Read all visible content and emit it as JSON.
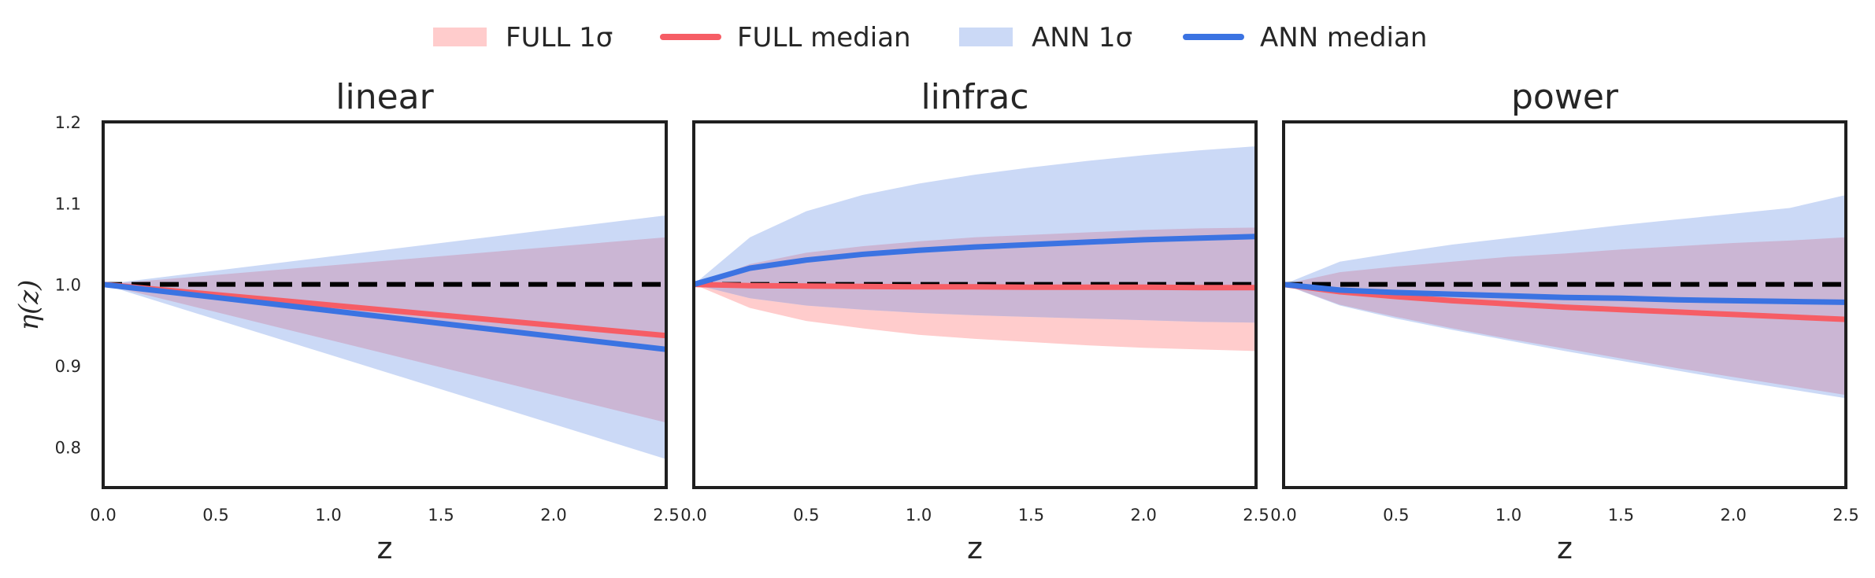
{
  "figure": {
    "legend": [
      {
        "kind": "band",
        "label": "FULL 1σ",
        "color": "#ffcccc"
      },
      {
        "kind": "line",
        "label": "FULL median",
        "color": "#f65d65"
      },
      {
        "kind": "band",
        "label": "ANN 1σ",
        "color": "#cbd9f6"
      },
      {
        "kind": "line",
        "label": "ANN median",
        "color": "#3b73e2"
      }
    ],
    "y_label": "η(z)",
    "colors": {
      "full_band": "#ffcccc",
      "ann_band": "#cbd9f6",
      "overlap_band": "#cbb6d4",
      "full_median": "#f65d65",
      "ann_median": "#3b73e2",
      "reference": "#000000",
      "axes": "#1f1f1f"
    }
  },
  "chart_data": [
    {
      "type": "line",
      "title": "linear",
      "xlabel": "z",
      "ylabel": "η(z)",
      "xlim": [
        0.0,
        2.5
      ],
      "ylim": [
        0.75,
        1.2
      ],
      "xticks": [
        "0.0",
        "0.5",
        "1.0",
        "1.5",
        "2.0",
        "2.5"
      ],
      "yticks": [
        "0.8",
        "0.9",
        "1.0",
        "1.1",
        "1.2"
      ],
      "reference_value": 1.0,
      "x": [
        0.0,
        0.5,
        1.0,
        1.5,
        2.0,
        2.5
      ],
      "series": [
        {
          "name": "FULL 1σ",
          "kind": "band",
          "lower": [
            1.0,
            0.966,
            0.932,
            0.898,
            0.864,
            0.83
          ],
          "upper": [
            1.0,
            1.0116,
            1.0232,
            1.0348,
            1.0464,
            1.058
          ]
        },
        {
          "name": "ANN 1σ",
          "kind": "band",
          "lower": [
            1.0,
            0.957,
            0.914,
            0.871,
            0.828,
            0.785
          ],
          "upper": [
            1.0,
            1.017,
            1.034,
            1.051,
            1.068,
            1.085
          ]
        },
        {
          "name": "FULL median",
          "kind": "line",
          "values": [
            1.0,
            0.9874,
            0.9748,
            0.9622,
            0.9496,
            0.937
          ]
        },
        {
          "name": "ANN median",
          "kind": "line",
          "values": [
            1.0,
            0.984,
            0.968,
            0.952,
            0.936,
            0.92
          ]
        }
      ]
    },
    {
      "type": "line",
      "title": "linfrac",
      "xlabel": "z",
      "ylabel": "",
      "xlim": [
        0.0,
        2.5
      ],
      "ylim": [
        0.75,
        1.2
      ],
      "xticks": [
        "0.0",
        "0.5",
        "1.0",
        "1.5",
        "2.0",
        "2.5"
      ],
      "yticks": [],
      "reference_value": 1.0,
      "x": [
        0.0,
        0.25,
        0.5,
        0.75,
        1.0,
        1.25,
        1.5,
        1.75,
        2.0,
        2.25,
        2.5
      ],
      "series": [
        {
          "name": "FULL 1σ",
          "kind": "band",
          "lower": [
            1.0,
            0.971,
            0.955,
            0.946,
            0.938,
            0.933,
            0.929,
            0.925,
            0.922,
            0.92,
            0.918
          ],
          "upper": [
            1.0,
            1.025,
            1.039,
            1.047,
            1.053,
            1.058,
            1.061,
            1.064,
            1.067,
            1.069,
            1.07
          ]
        },
        {
          "name": "ANN 1σ",
          "kind": "band",
          "lower": [
            1.0,
            0.983,
            0.974,
            0.969,
            0.965,
            0.962,
            0.96,
            0.958,
            0.956,
            0.954,
            0.953
          ],
          "upper": [
            1.0,
            1.058,
            1.09,
            1.11,
            1.124,
            1.135,
            1.144,
            1.152,
            1.159,
            1.165,
            1.17
          ]
        },
        {
          "name": "FULL median",
          "kind": "line",
          "values": [
            1.0,
            0.9985,
            0.998,
            0.9975,
            0.997,
            0.997,
            0.9965,
            0.9965,
            0.9965,
            0.996,
            0.996
          ]
        },
        {
          "name": "ANN median",
          "kind": "line",
          "values": [
            1.0,
            1.02,
            1.03,
            1.037,
            1.042,
            1.046,
            1.049,
            1.052,
            1.055,
            1.057,
            1.059
          ]
        }
      ]
    },
    {
      "type": "line",
      "title": "power",
      "xlabel": "z",
      "ylabel": "",
      "xlim": [
        0.0,
        2.5
      ],
      "ylim": [
        0.75,
        1.2
      ],
      "xticks": [
        "0.0",
        "0.5",
        "1.0",
        "1.5",
        "2.0",
        "2.5"
      ],
      "yticks": [],
      "reference_value": 1.0,
      "x": [
        0.0,
        0.25,
        0.5,
        0.75,
        1.0,
        1.25,
        1.5,
        1.75,
        2.0,
        2.25,
        2.5
      ],
      "series": [
        {
          "name": "FULL 1σ",
          "kind": "band",
          "lower": [
            1.0,
            0.975,
            0.96,
            0.946,
            0.933,
            0.921,
            0.909,
            0.897,
            0.886,
            0.875,
            0.864
          ],
          "upper": [
            1.0,
            1.015,
            1.022,
            1.028,
            1.034,
            1.038,
            1.043,
            1.047,
            1.051,
            1.054,
            1.058
          ]
        },
        {
          "name": "ANN 1σ",
          "kind": "band",
          "lower": [
            1.0,
            0.974,
            0.958,
            0.944,
            0.931,
            0.918,
            0.906,
            0.894,
            0.882,
            0.871,
            0.86
          ],
          "upper": [
            1.0,
            1.028,
            1.039,
            1.049,
            1.057,
            1.065,
            1.073,
            1.08,
            1.087,
            1.094,
            1.11
          ]
        },
        {
          "name": "FULL median",
          "kind": "line",
          "values": [
            1.0,
            0.991,
            0.985,
            0.98,
            0.976,
            0.972,
            0.969,
            0.966,
            0.963,
            0.96,
            0.957
          ]
        },
        {
          "name": "ANN median",
          "kind": "line",
          "values": [
            1.0,
            0.993,
            0.99,
            0.988,
            0.986,
            0.984,
            0.983,
            0.981,
            0.98,
            0.979,
            0.978
          ]
        }
      ]
    }
  ]
}
